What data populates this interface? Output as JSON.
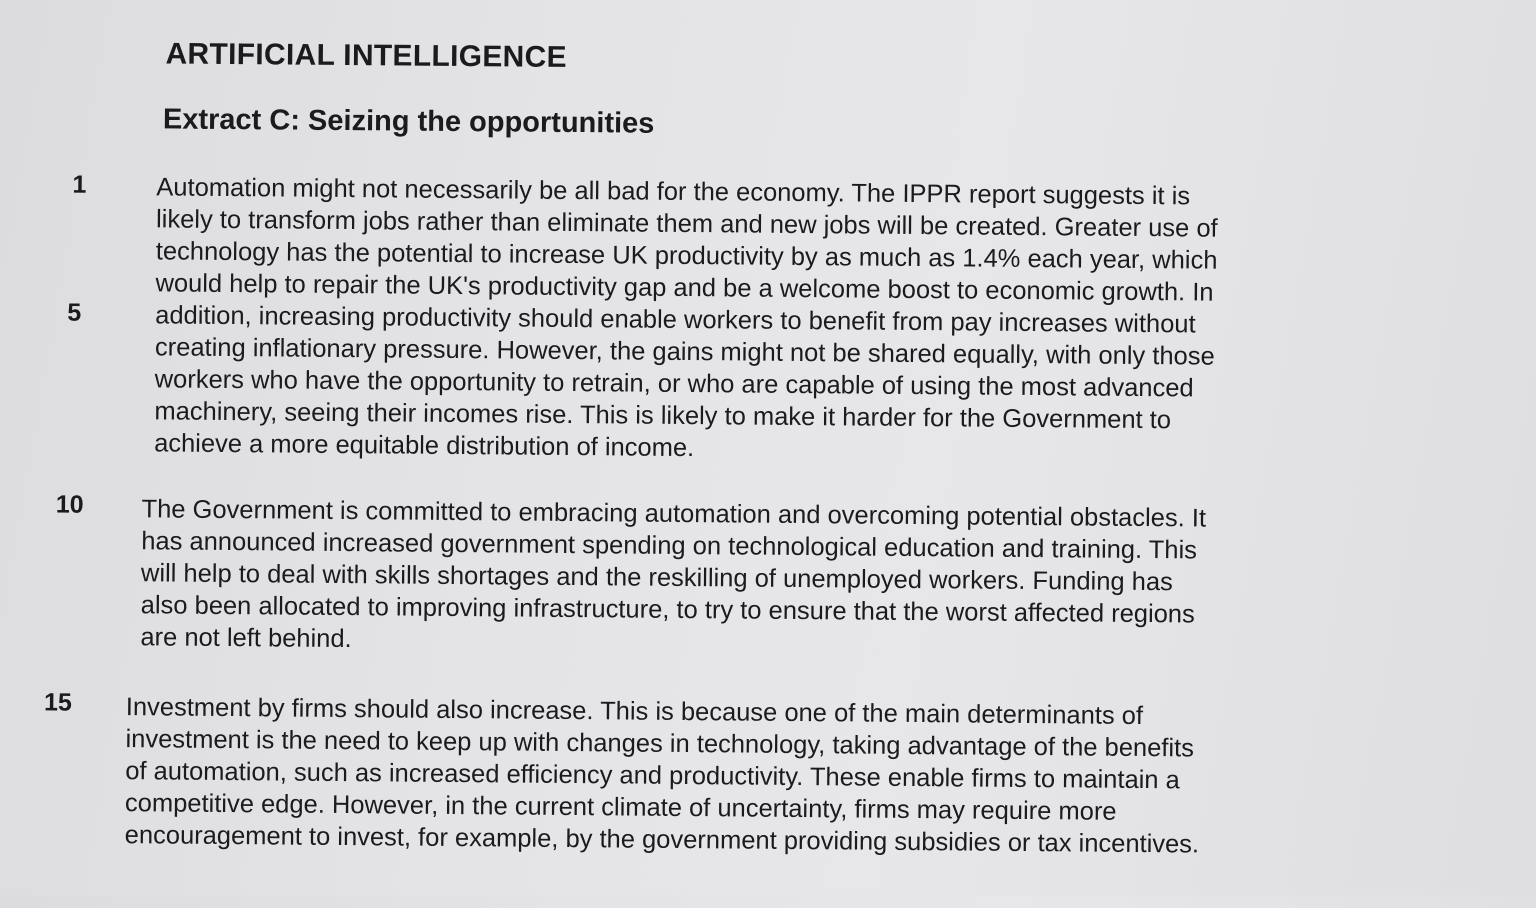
{
  "heading": "ARTIFICIAL INTELLIGENCE",
  "subheading": "Extract C: Seizing the opportunities",
  "line_numbers": [
    "1",
    "5",
    "10",
    "15"
  ],
  "paragraphs": [
    {
      "lines": [
        "Automation might not necessarily be all bad for the economy. The IPPR report suggests it is",
        "likely to transform jobs rather than eliminate them and new jobs will be created. Greater use of",
        "technology has the potential to increase UK productivity by as much as 1.4% each year, which",
        "would help to repair the UK's productivity gap and be a welcome boost to economic growth. In",
        "addition, increasing productivity should enable workers to benefit from pay increases without",
        "creating inflationary pressure. However, the gains might not be shared equally, with only those",
        "workers who have the opportunity to retrain, or who are capable of using the most advanced",
        "machinery, seeing their incomes rise. This is likely to make it harder for the Government to",
        "achieve a more equitable distribution of income."
      ]
    },
    {
      "lines": [
        "The Government is committed to embracing automation and overcoming potential obstacles. It",
        "has announced increased government spending on technological education and training. This",
        "will help to deal with skills shortages and the reskilling of unemployed workers. Funding has",
        "also been allocated to improving infrastructure, to try to ensure that the worst affected regions",
        "are not left behind."
      ]
    },
    {
      "lines": [
        "Investment by firms should also increase. This is because one of the main determinants of",
        "investment is the need to keep up with changes in technology, taking advantage of the benefits",
        "of automation, such as increased efficiency and productivity. These enable firms to maintain a",
        "competitive edge. However, in the current climate of uncertainty, firms may require more",
        "encouragement to invest, for example, by the government providing subsidies or tax incentives."
      ]
    }
  ]
}
